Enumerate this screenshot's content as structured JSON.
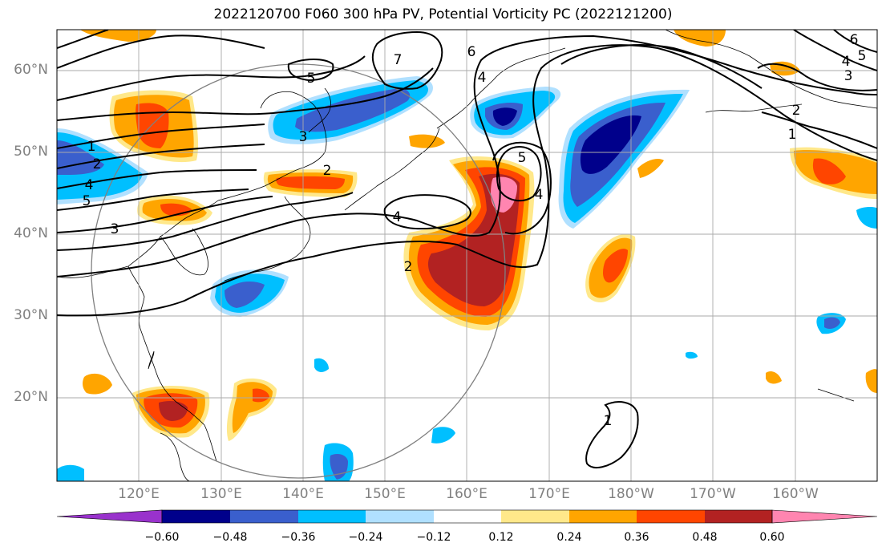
{
  "title": "2022120700 F060 300 hPa PV, Potential Vorticity PC (2022121200)",
  "lat_labels": [
    "60°N",
    "50°N",
    "40°N",
    "30°N",
    "20°N"
  ],
  "lon_labels": [
    "120°E",
    "130°E",
    "140°E",
    "150°E",
    "160°E",
    "170°E",
    "180°W",
    "170°W",
    "160°W"
  ],
  "colorbar": {
    "ticks": [
      "−0.60",
      "−0.48",
      "−0.36",
      "−0.24",
      "−0.12",
      "0.12",
      "0.24",
      "0.36",
      "0.48",
      "0.60"
    ],
    "colors": [
      "#9932cc",
      "#00008b",
      "#3a5fcd",
      "#00bfff",
      "#b0e0ff",
      "#ffffff",
      "#ffe88a",
      "#ffa500",
      "#ff4500",
      "#b22222",
      "#ff85b0"
    ]
  },
  "contour_labels": [
    "1",
    "2",
    "3",
    "4",
    "5",
    "6",
    "7"
  ]
}
